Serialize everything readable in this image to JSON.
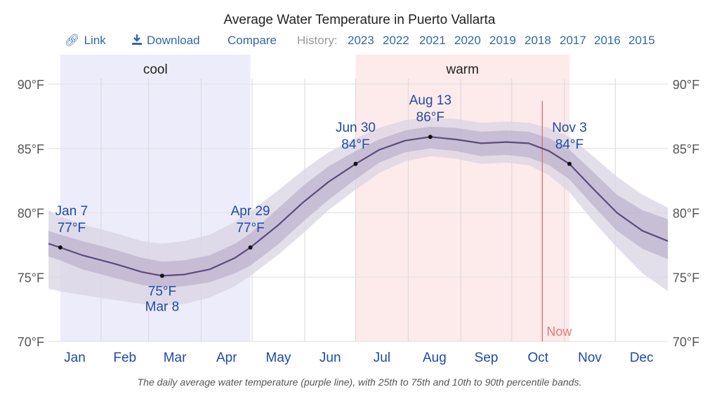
{
  "header": {
    "title": "Average Water Temperature in Puerto Vallarta"
  },
  "toolbar": {
    "link_label": "Link",
    "link_icon": "link-icon",
    "download_label": "Download",
    "download_icon": "download-icon",
    "compare_label": "Compare",
    "history_label": "History:",
    "history_years": [
      "2023",
      "2022",
      "2021",
      "2020",
      "2019",
      "2018",
      "2017",
      "2016",
      "2015"
    ]
  },
  "caption": "The daily average water temperature (purple line), with 25th to 75th and 10th to 90th percentile bands.",
  "chart_data": {
    "type": "line",
    "title": "Average Water Temperature in Puerto Vallarta",
    "xlabel": "",
    "ylabel": "",
    "x_unit": "day of year",
    "y_unit": "°F",
    "ylim": [
      70,
      90
    ],
    "xlim": [
      0,
      365
    ],
    "yticks": [
      70,
      75,
      80,
      85,
      90
    ],
    "ytick_labels": [
      "70°F",
      "75°F",
      "80°F",
      "85°F",
      "90°F"
    ],
    "months": [
      "Jan",
      "Feb",
      "Mar",
      "Apr",
      "May",
      "Jun",
      "Jul",
      "Aug",
      "Sep",
      "Oct",
      "Nov",
      "Dec"
    ],
    "grid": true,
    "colors": {
      "line": "#5c4a7a",
      "band_inner": "#b9aecb",
      "band_outer": "#d9d4e3",
      "cool": "#ececfb",
      "warm": "#fdeaea",
      "now": "#e66a6c",
      "annotation": "#1f4aa6"
    },
    "regions": [
      {
        "label": "cool",
        "start_day": 7,
        "end_day": 119
      },
      {
        "label": "warm",
        "start_day": 181,
        "end_day": 307
      }
    ],
    "now_marker": {
      "label": "Now",
      "day": 291
    },
    "series": [
      {
        "name": "average",
        "x": [
          0,
          7,
          20,
          40,
          55,
          67,
          80,
          95,
          110,
          119,
          135,
          150,
          165,
          181,
          195,
          210,
          225,
          240,
          255,
          270,
          283,
          295,
          307,
          320,
          335,
          350,
          365
        ],
        "y": [
          77.6,
          77.3,
          76.7,
          76.0,
          75.4,
          75.1,
          75.2,
          75.6,
          76.5,
          77.3,
          79.0,
          80.8,
          82.4,
          83.8,
          84.9,
          85.6,
          85.9,
          85.7,
          85.4,
          85.5,
          85.4,
          84.8,
          83.8,
          82.0,
          80.0,
          78.6,
          77.8
        ]
      },
      {
        "name": "p25",
        "y": [
          76.6,
          76.3,
          75.6,
          74.9,
          74.4,
          74.2,
          74.3,
          74.6,
          75.3,
          75.9,
          77.5,
          79.3,
          81.0,
          82.6,
          83.9,
          84.7,
          85.0,
          84.8,
          84.4,
          84.5,
          84.3,
          83.7,
          82.6,
          80.7,
          78.6,
          77.2,
          76.4
        ]
      },
      {
        "name": "p75",
        "y": [
          78.6,
          78.3,
          77.8,
          77.1,
          76.5,
          76.2,
          76.3,
          76.7,
          77.6,
          78.4,
          80.3,
          82.1,
          83.6,
          84.8,
          85.7,
          86.4,
          86.7,
          86.6,
          86.3,
          86.4,
          86.3,
          85.8,
          84.9,
          83.3,
          81.4,
          80.2,
          79.5
        ]
      },
      {
        "name": "p10",
        "y": [
          74.1,
          73.9,
          73.6,
          73.2,
          72.9,
          72.8,
          72.9,
          73.4,
          74.3,
          75.1,
          76.7,
          78.4,
          80.2,
          81.8,
          83.1,
          84.0,
          84.4,
          84.2,
          83.8,
          83.9,
          83.7,
          82.9,
          81.6,
          79.5,
          77.3,
          75.3,
          73.9
        ]
      },
      {
        "name": "p90",
        "y": [
          80.2,
          79.7,
          79.1,
          78.4,
          77.8,
          77.6,
          77.8,
          78.3,
          79.3,
          80.1,
          81.7,
          83.3,
          84.7,
          85.8,
          86.6,
          87.2,
          87.4,
          87.3,
          87.0,
          87.1,
          87.0,
          86.6,
          85.9,
          84.5,
          82.8,
          81.4,
          80.4
        ]
      }
    ],
    "annotations": [
      {
        "date": "Jan 7",
        "day": 7,
        "value": 77.3,
        "label_temp": "77°F",
        "position": "above"
      },
      {
        "date": "Mar 8",
        "day": 67,
        "value": 75.1,
        "label_temp": "75°F",
        "position": "below"
      },
      {
        "date": "Apr 29",
        "day": 119,
        "value": 77.3,
        "label_temp": "77°F",
        "position": "above"
      },
      {
        "date": "Jun 30",
        "day": 181,
        "value": 83.8,
        "label_temp": "84°F",
        "position": "above"
      },
      {
        "date": "Aug 13",
        "day": 225,
        "value": 85.9,
        "label_temp": "86°F",
        "position": "above"
      },
      {
        "date": "Nov 3",
        "day": 307,
        "value": 83.8,
        "label_temp": "84°F",
        "position": "above"
      }
    ]
  }
}
